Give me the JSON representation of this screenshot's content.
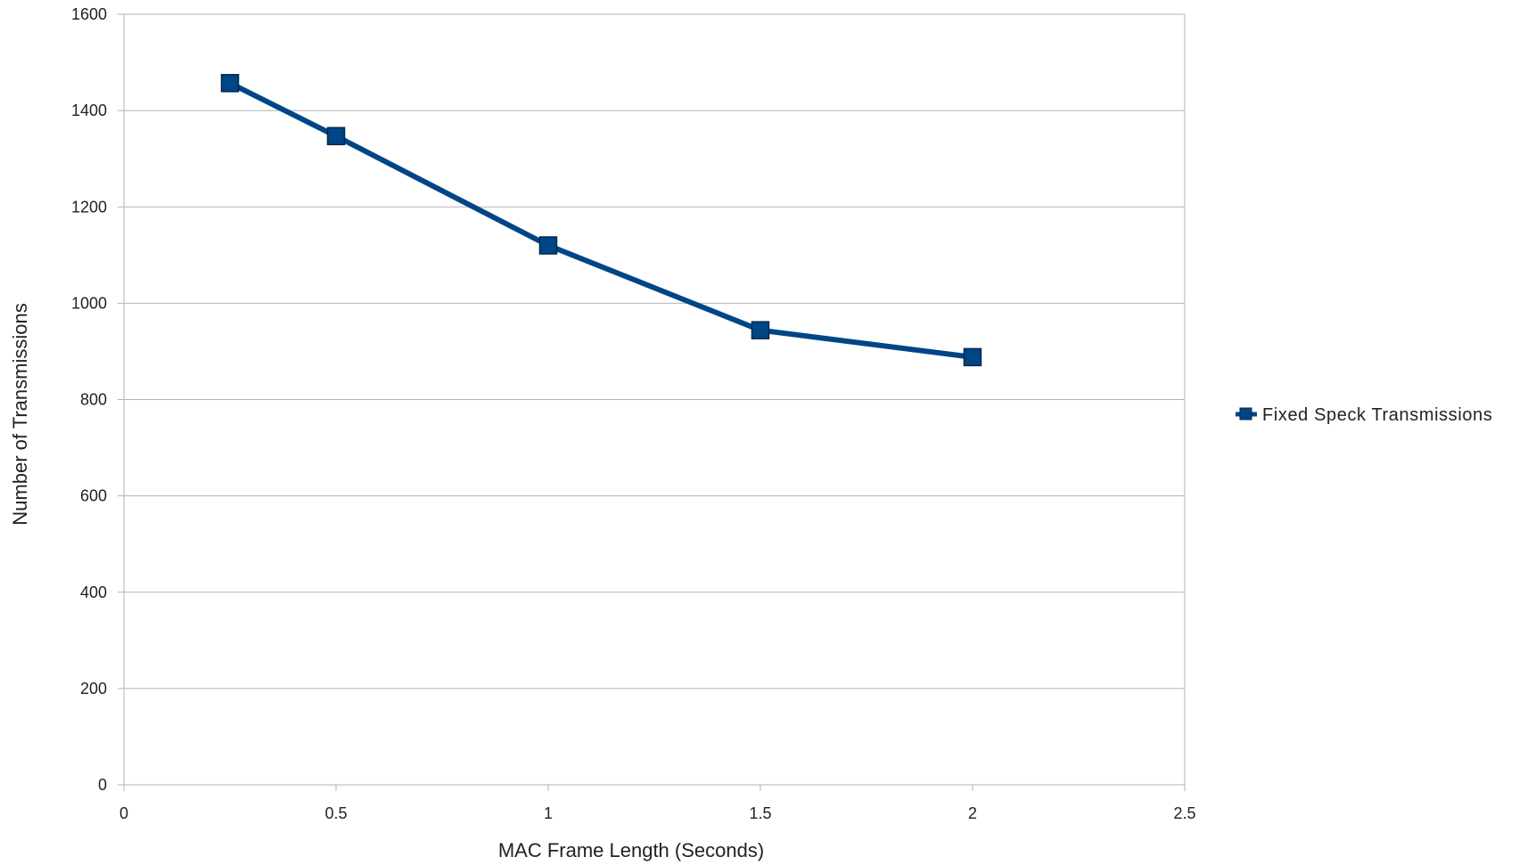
{
  "chart_data": {
    "type": "line",
    "xlabel": "MAC Frame Length (Seconds)",
    "ylabel": "Number of Transmissions",
    "xlim": [
      0,
      2.5
    ],
    "ylim": [
      0,
      1600
    ],
    "x_ticks": [
      "0",
      "0.5",
      "1",
      "1.5",
      "2",
      "2.5"
    ],
    "y_ticks": [
      "0",
      "200",
      "400",
      "600",
      "800",
      "1000",
      "1200",
      "1400",
      "1600"
    ],
    "grid": "horizontal",
    "legend_position": "right",
    "series": [
      {
        "name": "Fixed Speck Transmissions",
        "color": "#004586",
        "marker": "square",
        "x": [
          0.25,
          0.5,
          1,
          1.5,
          2
        ],
        "y": [
          1457,
          1347,
          1120,
          944,
          888
        ]
      }
    ]
  }
}
